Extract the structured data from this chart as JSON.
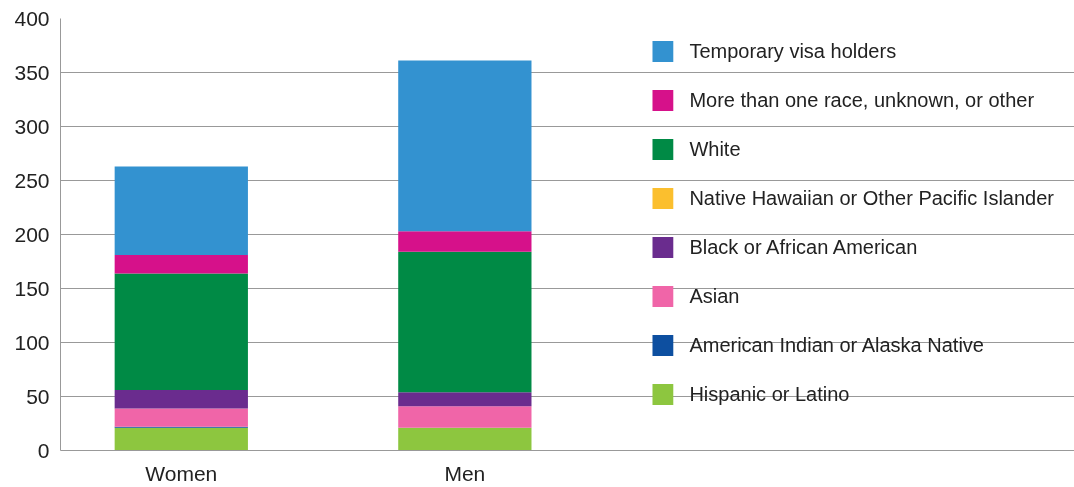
{
  "chart_data": {
    "type": "bar",
    "stacked": true,
    "categories": [
      "Women",
      "Men"
    ],
    "series": [
      {
        "name": "Hispanic or Latino",
        "color": "#8dc63f",
        "values": [
          21,
          21
        ]
      },
      {
        "name": "American Indian or Alaska Native",
        "color": "#0d4fa0",
        "values": [
          1,
          0
        ]
      },
      {
        "name": "Asian",
        "color": "#f065a8",
        "values": [
          17,
          20
        ]
      },
      {
        "name": "Black or African American",
        "color": "#6a2c8e",
        "values": [
          17,
          13
        ]
      },
      {
        "name": "Native Hawaiian or Other Pacific Islander",
        "color": "#fbbf2e",
        "values": [
          0,
          0
        ]
      },
      {
        "name": "White",
        "color": "#008a45",
        "values": [
          108,
          130
        ]
      },
      {
        "name": "More than one race, unknown, or other",
        "color": "#d6118a",
        "values": [
          17,
          19
        ]
      },
      {
        "name": "Temporary visa holders",
        "color": "#3392d0",
        "values": [
          82,
          158
        ]
      }
    ],
    "ylim": [
      0,
      400
    ],
    "yticks": [
      0,
      50,
      100,
      150,
      200,
      250,
      300,
      350,
      400
    ],
    "grid": "y",
    "legend": "right"
  }
}
